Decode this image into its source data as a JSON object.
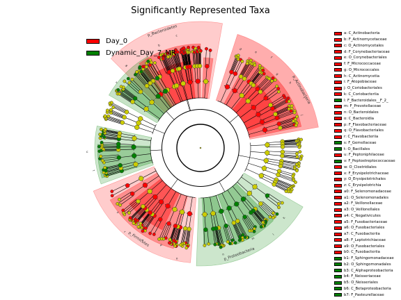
{
  "chart_data": {
    "type": "cladogram",
    "title": "Significantly Represented Taxa",
    "legend": [
      {
        "name": "Day_0",
        "color": "#ff0000"
      },
      {
        "name": "Dynamic_Day_7_MR",
        "color": "#008000"
      }
    ],
    "neutral_node_color": "#cccc00",
    "phylum_labels": [
      {
        "label": "p_Bacteroidetes",
        "group": "Day_0"
      },
      {
        "label": "p_Actinobacteria",
        "group": "Day_0"
      },
      {
        "label": "p_Firmicutes",
        "group": "Day_0"
      },
      {
        "label": "p_Proteobacteria",
        "group": "Dynamic_Day_7_MR"
      }
    ],
    "taxa": [
      {
        "key": "a",
        "name": "C_Actinobacteria",
        "group": "Day_0"
      },
      {
        "key": "b",
        "name": "F_Actinomycetaceae",
        "group": "Day_0"
      },
      {
        "key": "c",
        "name": "O_Actinomycetales",
        "group": "Day_0"
      },
      {
        "key": "d",
        "name": "F_Corynebacteriaceae",
        "group": "Day_0"
      },
      {
        "key": "e",
        "name": "O_Corynebacteriales",
        "group": "Day_0"
      },
      {
        "key": "f",
        "name": "F_Micrococcaceae",
        "group": "Day_0"
      },
      {
        "key": "g",
        "name": "O_Micrococcales",
        "group": "Day_0"
      },
      {
        "key": "h",
        "name": "C_Actinomycetia",
        "group": "Day_0"
      },
      {
        "key": "i",
        "name": "F_Atopobiaceae",
        "group": "Day_0"
      },
      {
        "key": "j",
        "name": "O_Coriobacteriales",
        "group": "Day_0"
      },
      {
        "key": "k",
        "name": "C_Coriobacteriia",
        "group": "Day_0"
      },
      {
        "key": "l",
        "name": "F_Bacteroidales__F_2_",
        "group": "Dynamic_Day_7_MR"
      },
      {
        "key": "m",
        "name": "F_Prevotellaceae",
        "group": "Day_0"
      },
      {
        "key": "n",
        "name": "O_Bacteroidales",
        "group": "Day_0"
      },
      {
        "key": "o",
        "name": "C_Bacteroidia",
        "group": "Day_0"
      },
      {
        "key": "p",
        "name": "F_Flavobacteriaceae",
        "group": "Day_0"
      },
      {
        "key": "q",
        "name": "O_Flavobacteriales",
        "group": "Day_0"
      },
      {
        "key": "r",
        "name": "C_Flavobacteriia",
        "group": "Day_0"
      },
      {
        "key": "s",
        "name": "F_Gemellaceae",
        "group": "Dynamic_Day_7_MR"
      },
      {
        "key": "t",
        "name": "O_Bacillales",
        "group": "Dynamic_Day_7_MR"
      },
      {
        "key": "u",
        "name": "F_Peptoniphilaceae",
        "group": "Day_0"
      },
      {
        "key": "v",
        "name": "F_Peptostreptococcaceae",
        "group": "Dynamic_Day_7_MR"
      },
      {
        "key": "w",
        "name": "O_Clostridiales",
        "group": "Day_0"
      },
      {
        "key": "x",
        "name": "F_Erysipelotrichaceae",
        "group": "Day_0"
      },
      {
        "key": "y",
        "name": "O_Erysipelotrichales",
        "group": "Day_0"
      },
      {
        "key": "z",
        "name": "C_Erysipelotrichia",
        "group": "Day_0"
      },
      {
        "key": "a0",
        "name": "F_Selenomonadaceae",
        "group": "Day_0"
      },
      {
        "key": "a1",
        "name": "O_Selenomonadales",
        "group": "Day_0"
      },
      {
        "key": "a2",
        "name": "F_Veillonellaceae",
        "group": "Day_0"
      },
      {
        "key": "a3",
        "name": "O_Veillonellales",
        "group": "Day_0"
      },
      {
        "key": "a4",
        "name": "C_Negativicutes",
        "group": "Day_0"
      },
      {
        "key": "a5",
        "name": "F_Fusobacteriaceae",
        "group": "Day_0"
      },
      {
        "key": "a6",
        "name": "O_Fusobacteriales",
        "group": "Day_0"
      },
      {
        "key": "a7",
        "name": "C_Fusobacteriia",
        "group": "Day_0"
      },
      {
        "key": "a8",
        "name": "F_Leptotrichiaceae",
        "group": "Day_0"
      },
      {
        "key": "a9",
        "name": "O_Fusobacteriales",
        "group": "Day_0"
      },
      {
        "key": "b0",
        "name": "C_Fusobacteriia",
        "group": "Day_0"
      },
      {
        "key": "b1",
        "name": "F_Sphingomonadaceae",
        "group": "Dynamic_Day_7_MR"
      },
      {
        "key": "b2",
        "name": "O_Sphingomonadales",
        "group": "Dynamic_Day_7_MR"
      },
      {
        "key": "b3",
        "name": "C_Alphaproteobacteria",
        "group": "Dynamic_Day_7_MR"
      },
      {
        "key": "b4",
        "name": "F_Neisseriaceae",
        "group": "Dynamic_Day_7_MR"
      },
      {
        "key": "b5",
        "name": "O_Neisseriales",
        "group": "Dynamic_Day_7_MR"
      },
      {
        "key": "b6",
        "name": "C_Betaproteobacteria",
        "group": "Dynamic_Day_7_MR"
      },
      {
        "key": "b7",
        "name": "F_Pasteurellaceae",
        "group": "Dynamic_Day_7_MR"
      }
    ]
  }
}
